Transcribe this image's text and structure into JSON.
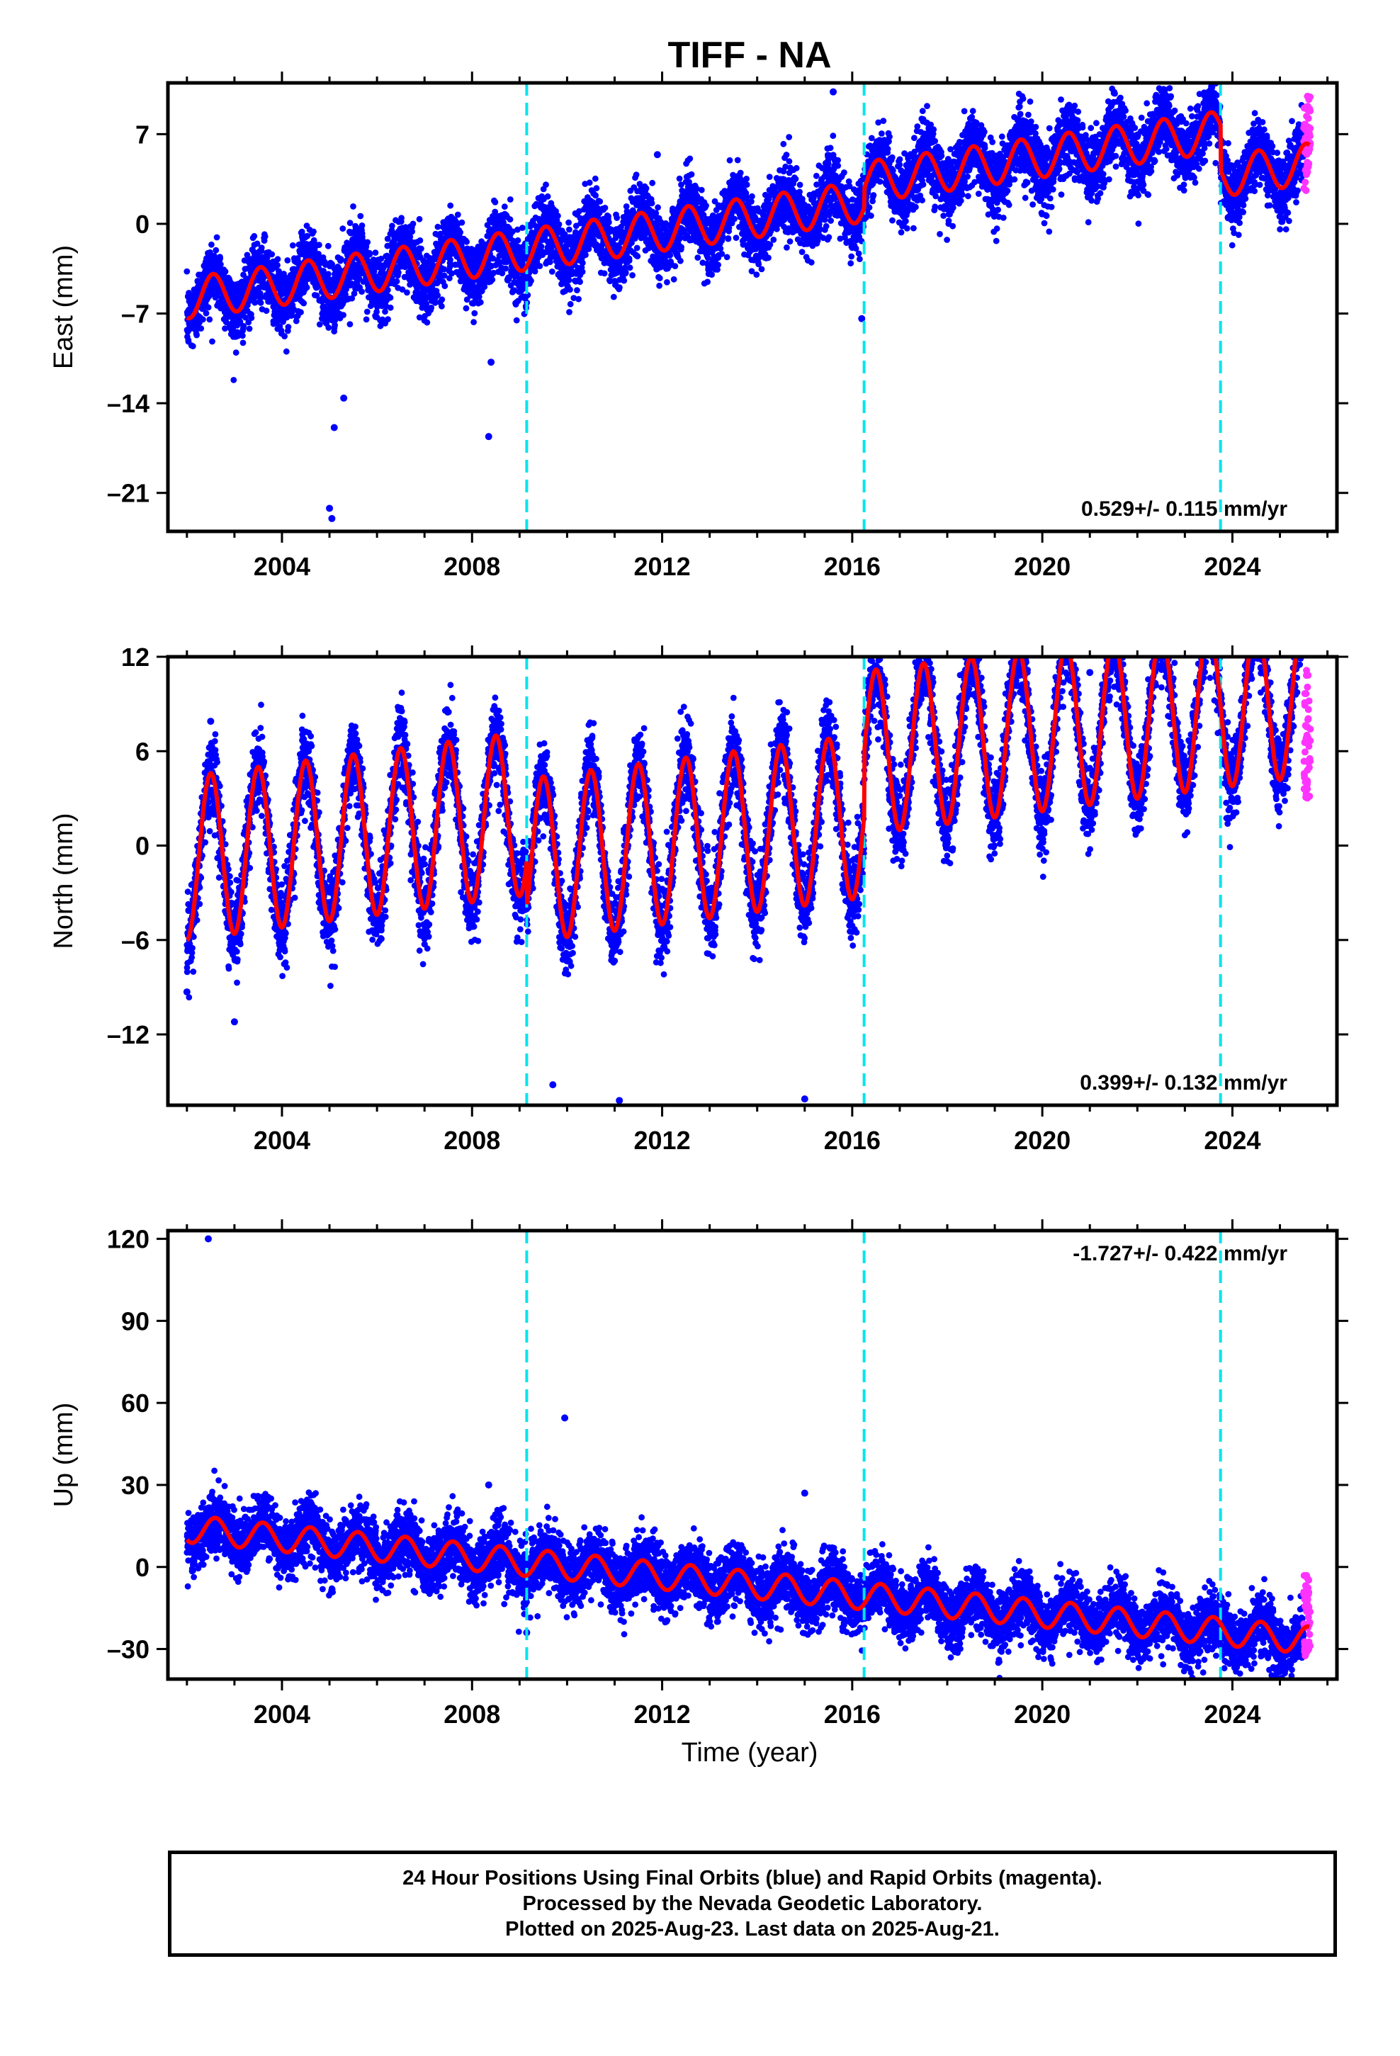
{
  "title": "TIFF - NA",
  "xlabel": "Time (year)",
  "footer": {
    "line1": "24 Hour Positions Using Final Orbits (blue) and Rapid Orbits (magenta).",
    "line2": "Processed by the Nevada Geodetic Laboratory.",
    "line3": "Plotted on 2025-Aug-23. Last data on 2025-Aug-21."
  },
  "colors": {
    "final_orbits": "#0000ff",
    "rapid_orbits": "#ff33ff",
    "model_fit": "#ff0000",
    "equipment_change": "#00e5ee"
  },
  "chart_data": [
    {
      "type": "scatter",
      "ylabel": "East (mm)",
      "xlim": [
        2001.6,
        2026.2
      ],
      "ylim": [
        -24,
        11
      ],
      "xticks": [
        "2004",
        "2008",
        "2012",
        "2016",
        "2020",
        "2024"
      ],
      "yticks": [
        "7",
        "0",
        "–7",
        "–14",
        "–21"
      ],
      "ytick_values": [
        7,
        0,
        -7,
        -14,
        -21
      ],
      "rate_text": "0.529+/- 0.115 mm/yr",
      "rate_position": "bottom-right",
      "equipment_changes": [
        2009.15,
        2016.25,
        2023.75
      ],
      "model": {
        "trend_mm_per_yr": 0.529,
        "value_at_2002": -5.8,
        "annual_amplitude": 1.6,
        "phase_peak": 0.55,
        "steps": [
          {
            "year": 2016.25,
            "offset": 1.5
          },
          {
            "year": 2023.75,
            "offset": -3.5
          }
        ]
      },
      "scatter_sigma": 1.3,
      "outliers": [
        [
          2005.0,
          -22.2
        ],
        [
          2005.05,
          -23.0
        ],
        [
          2005.1,
          -15.9
        ],
        [
          2005.3,
          -13.6
        ],
        [
          2008.35,
          -16.6
        ],
        [
          2008.4,
          -10.8
        ],
        [
          2011.9,
          5.4
        ],
        [
          2016.2,
          -7.4
        ],
        [
          2015.6,
          10.3
        ]
      ],
      "rapid_orbits": {
        "x_range": [
          2025.5,
          2025.64
        ],
        "y_range": [
          2.5,
          10.0
        ]
      }
    },
    {
      "type": "scatter",
      "ylabel": "North (mm)",
      "xlim": [
        2001.6,
        2026.2
      ],
      "ylim": [
        -16.5,
        12
      ],
      "xticks": [
        "2004",
        "2008",
        "2012",
        "2016",
        "2020",
        "2024"
      ],
      "yticks": [
        "12",
        "6",
        "0",
        "–6",
        "–12"
      ],
      "ytick_values": [
        12,
        6,
        0,
        -6,
        -12
      ],
      "rate_text": "0.399+/- 0.132 mm/yr",
      "rate_position": "bottom-right",
      "equipment_changes": [
        2009.15,
        2016.25,
        2023.75
      ],
      "model": {
        "trend_mm_per_yr": 0.399,
        "value_at_2002": -0.8,
        "annual_amplitude": 5.2,
        "phase_peak": 0.5,
        "steps": [
          {
            "year": 2009.15,
            "offset": -3.0
          },
          {
            "year": 2016.25,
            "offset": 4.0
          }
        ]
      },
      "scatter_sigma": 1.3,
      "outliers": [
        [
          2002.0,
          -9.3
        ],
        [
          2002.5,
          7.9
        ],
        [
          2003.0,
          -11.2
        ],
        [
          2009.7,
          -15.2
        ],
        [
          2011.1,
          -16.2
        ],
        [
          2021.0,
          11.0
        ],
        [
          2024.6,
          11.3
        ],
        [
          2015.0,
          -16.1
        ]
      ],
      "rapid_orbits": {
        "x_range": [
          2025.5,
          2025.64
        ],
        "y_range": [
          2.8,
          11.2
        ]
      }
    },
    {
      "type": "scatter",
      "ylabel": "Up (mm)",
      "xlim": [
        2001.6,
        2026.2
      ],
      "ylim": [
        -41,
        123
      ],
      "xticks": [
        "2004",
        "2008",
        "2012",
        "2016",
        "2020",
        "2024"
      ],
      "yticks": [
        "120",
        "90",
        "60",
        "30",
        "0",
        "–30"
      ],
      "ytick_values": [
        120,
        90,
        60,
        30,
        0,
        -30
      ],
      "rate_text": "-1.727+/- 0.422 mm/yr",
      "rate_position": "top-right",
      "equipment_changes": [
        2009.15,
        2016.25,
        2023.75
      ],
      "model": {
        "trend_mm_per_yr": -1.727,
        "value_at_2002": 14.0,
        "annual_amplitude": 5.0,
        "phase_peak": 0.6,
        "steps": []
      },
      "scatter_sigma": 5.5,
      "outliers": [
        [
          2002.45,
          120.0
        ],
        [
          2009.95,
          54.5
        ],
        [
          2008.35,
          30.0
        ],
        [
          2009.15,
          -24.0
        ],
        [
          2015.0,
          27.0
        ]
      ],
      "rapid_orbits": {
        "x_range": [
          2025.5,
          2025.64
        ],
        "y_range": [
          -35.0,
          -3.0
        ]
      }
    }
  ]
}
